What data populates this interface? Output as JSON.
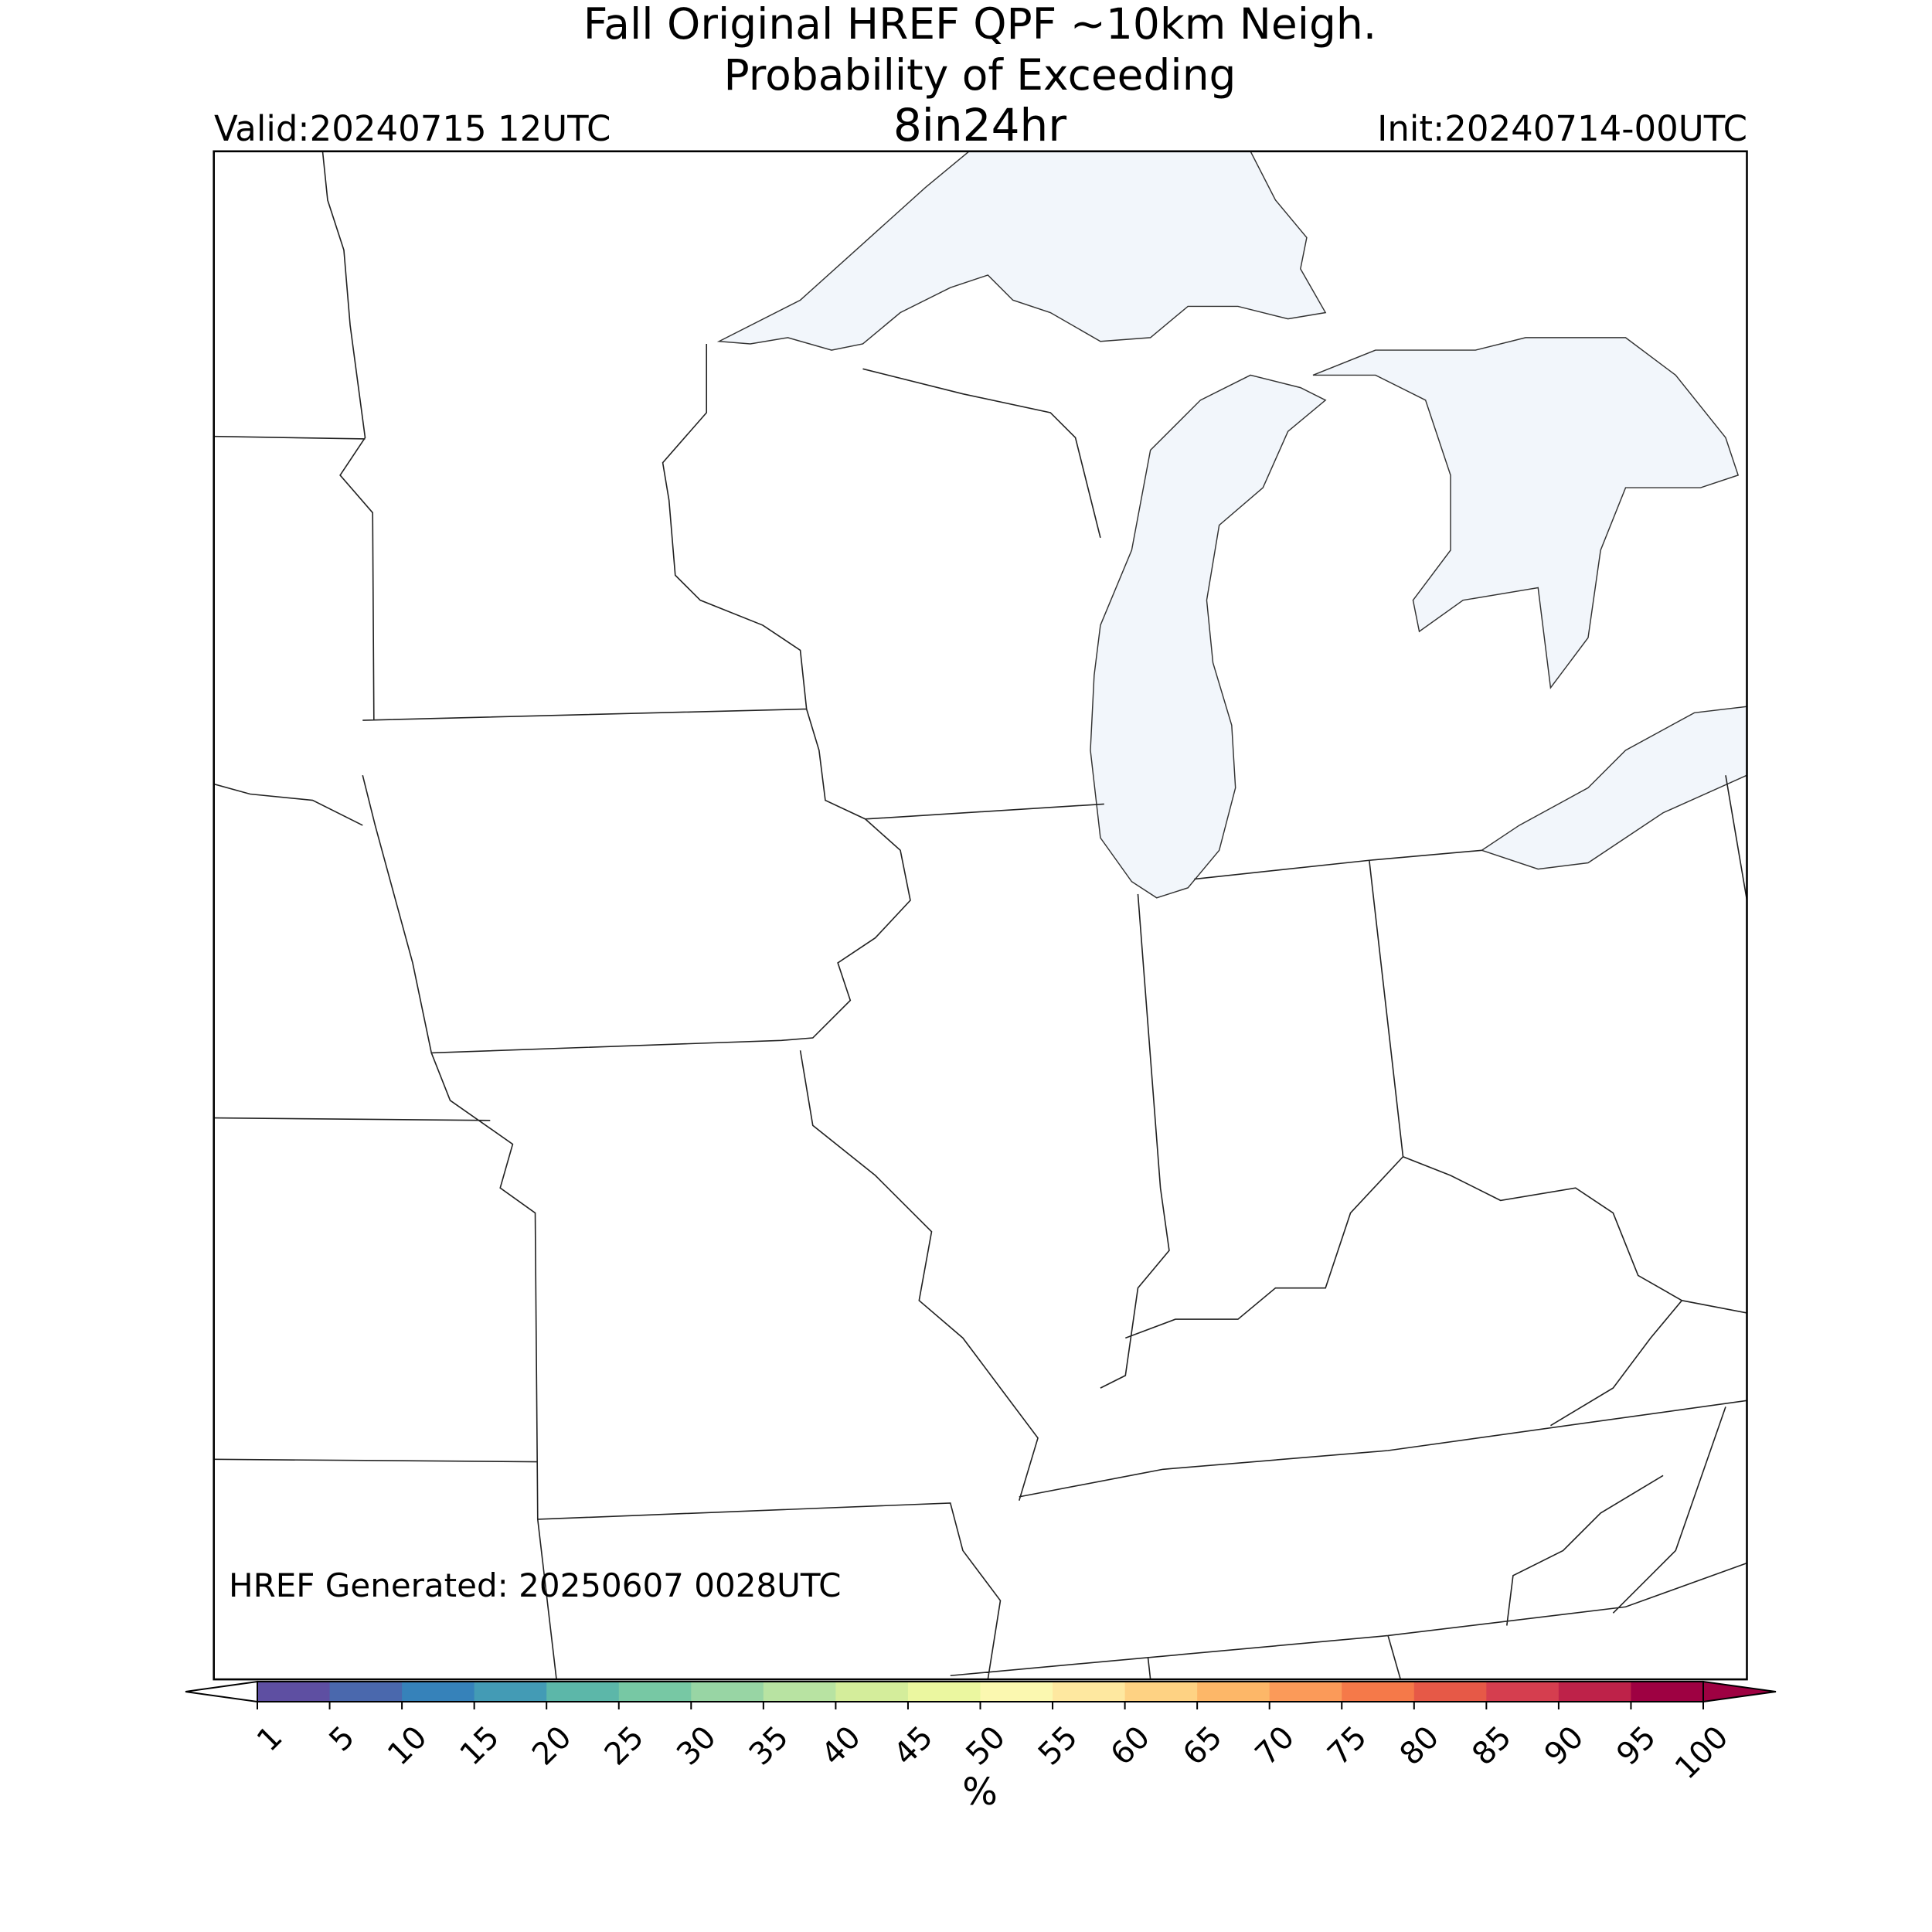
{
  "header": {
    "title_line1": "Fall Original HREF QPF ~10km Neigh.",
    "title_line2": "Probability of Exceeding",
    "title_line3": "8in24hr",
    "valid": "Valid:20240715 12UTC",
    "init": "Init:20240714-00UTC"
  },
  "footer_note": "HREF Generated: 20250607 0028UTC",
  "colorbar": {
    "label": "%",
    "ticks": [
      1,
      5,
      10,
      15,
      20,
      25,
      30,
      35,
      40,
      45,
      50,
      55,
      60,
      65,
      70,
      75,
      80,
      85,
      90,
      95,
      100
    ],
    "colors": [
      "#5e4fa2",
      "#4a68ad",
      "#3682ba",
      "#439bb5",
      "#5cb7a9",
      "#77c8a4",
      "#98d5a4",
      "#b8e3a2",
      "#d4ed9b",
      "#ebf7a0",
      "#fbf8b0",
      "#fee8a0",
      "#fed283",
      "#fdb768",
      "#fb9a59",
      "#f57949",
      "#e65947",
      "#d53e4f",
      "#be2249",
      "#9e0142"
    ],
    "under_color": "#ffffff",
    "over_color": "#9e0142"
  }
}
